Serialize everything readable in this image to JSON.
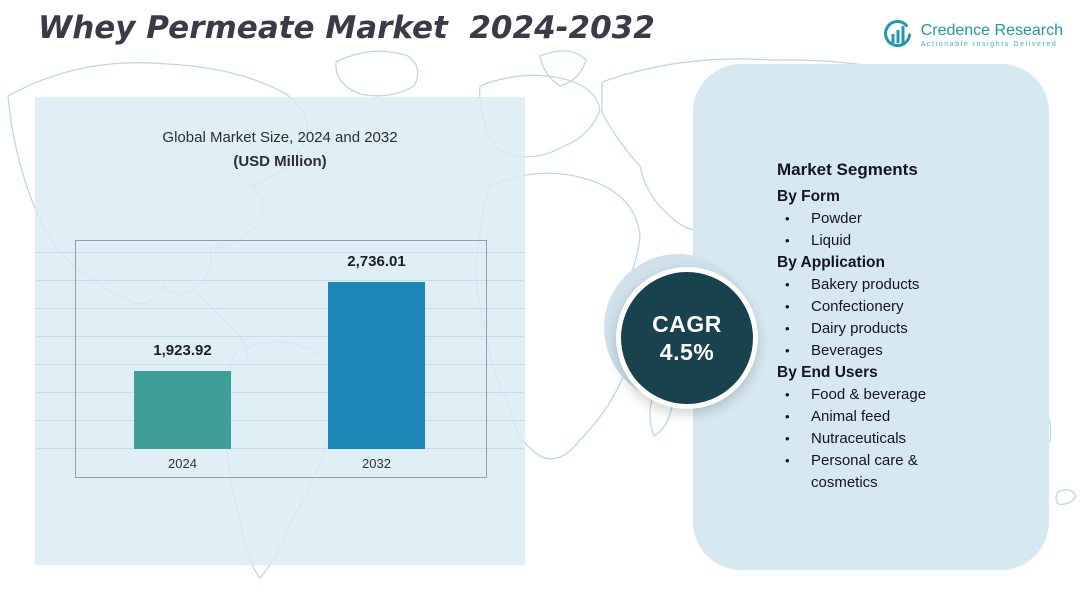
{
  "header": {
    "title": "Whey Permeate Market  2024-2032",
    "logo": {
      "brand": "Credence Research",
      "tagline": "Actionable Insights Delivered"
    }
  },
  "chart_data": {
    "type": "bar",
    "title": "Global Market Size, 2024 and 2032",
    "subtitle": "(USD Million)",
    "categories": [
      "2024",
      "2032"
    ],
    "values": [
      1923.92,
      2736.01
    ],
    "value_labels": [
      "1,923.92",
      "2,736.01"
    ],
    "bar_colors": [
      "#3e9e98",
      "#1c86b8"
    ],
    "ylim": [
      0,
      3000
    ],
    "grid": true,
    "legend": false
  },
  "cagr_badge": {
    "label": "CAGR",
    "value": "4.5%"
  },
  "segments": {
    "title": "Market Segments",
    "groups": [
      {
        "heading": "By Form",
        "items": [
          "Powder",
          "Liquid"
        ]
      },
      {
        "heading": "By Application",
        "items": [
          "Bakery products",
          "Confectionery",
          "Dairy products",
          "Beverages"
        ]
      },
      {
        "heading": "By End Users",
        "items": [
          "Food & beverage",
          "Animal feed",
          "Nutraceuticals",
          "Personal care & cosmetics"
        ]
      }
    ]
  },
  "colors": {
    "bar_2024": "#3e9e98",
    "bar_2032": "#1c86b8",
    "cagr_circle": "#17424e",
    "panel_bg": "#d6e8f2",
    "brand_teal": "#1f97a8",
    "map_stroke": "#bdd7e5"
  }
}
